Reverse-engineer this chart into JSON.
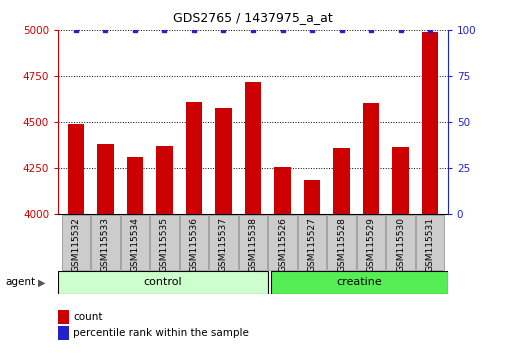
{
  "title": "GDS2765 / 1437975_a_at",
  "samples": [
    "GSM115532",
    "GSM115533",
    "GSM115534",
    "GSM115535",
    "GSM115536",
    "GSM115537",
    "GSM115538",
    "GSM115526",
    "GSM115527",
    "GSM115528",
    "GSM115529",
    "GSM115530",
    "GSM115531"
  ],
  "counts": [
    4490,
    4380,
    4310,
    4370,
    4610,
    4575,
    4720,
    4255,
    4185,
    4360,
    4605,
    4365,
    4990
  ],
  "percentiles": [
    100,
    100,
    100,
    100,
    100,
    100,
    100,
    100,
    100,
    100,
    100,
    100,
    100
  ],
  "n_control": 7,
  "n_creatine": 6,
  "bar_color": "#CC0000",
  "dot_color": "#2222CC",
  "ylim_left": [
    4000,
    5000
  ],
  "ylim_right": [
    0,
    100
  ],
  "yticks_left": [
    4000,
    4250,
    4500,
    4750,
    5000
  ],
  "yticks_right": [
    0,
    25,
    50,
    75,
    100
  ],
  "control_color": "#CCFFCC",
  "creatine_color": "#55EE55",
  "left_axis_color": "#CC0000",
  "right_axis_color": "#2222CC",
  "background_color": "#FFFFFF",
  "tick_box_color": "#CCCCCC",
  "tick_box_edge": "#888888",
  "bar_width": 0.55,
  "legend_count_label": "count",
  "legend_pct_label": "percentile rank within the sample",
  "agent_label": "agent"
}
